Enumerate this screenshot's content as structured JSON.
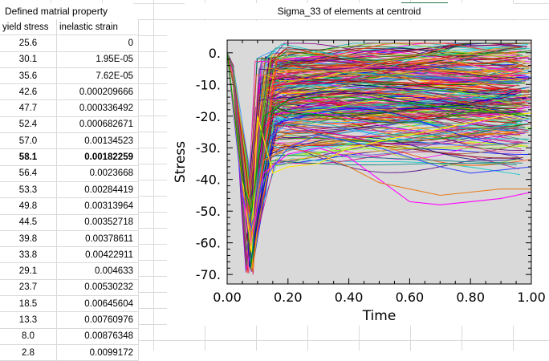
{
  "spreadsheet": {
    "table_title": "Defined matrial property",
    "columns": [
      "yield stress",
      "inelastic strain"
    ],
    "rows": [
      [
        "25.6",
        "0"
      ],
      [
        "30.1",
        "1.95E-05"
      ],
      [
        "35.6",
        "7.62E-05"
      ],
      [
        "42.6",
        "0.000209666"
      ],
      [
        "47.7",
        "0.000336492"
      ],
      [
        "52.4",
        "0.000682671"
      ],
      [
        "57.0",
        "0.00134523"
      ],
      [
        "58.1",
        "0.00182259"
      ],
      [
        "56.4",
        "0.0023668"
      ],
      [
        "53.3",
        "0.00284419"
      ],
      [
        "49.8",
        "0.00313964"
      ],
      [
        "44.5",
        "0.00352718"
      ],
      [
        "39.8",
        "0.00378611"
      ],
      [
        "33.8",
        "0.00422911"
      ],
      [
        "29.1",
        "0.004633"
      ],
      [
        "23.7",
        "0.00530232"
      ],
      [
        "18.5",
        "0.00645604"
      ],
      [
        "13.3",
        "0.00760976"
      ],
      [
        "8.0",
        "0.00876348"
      ],
      [
        "2.8",
        "0.0099172"
      ]
    ],
    "bold_row_index": 7
  },
  "chart_title": "Sigma_33 of elements at centroid",
  "chart_data": {
    "type": "line",
    "title": "",
    "xlabel": "Time",
    "ylabel": "Stress",
    "xlim": [
      0,
      1
    ],
    "ylim": [
      -73,
      4
    ],
    "xticks": [
      "0.00",
      "0.20",
      "0.40",
      "0.60",
      "0.80",
      "1.00"
    ],
    "yticks": [
      "0.",
      "-10.",
      "-20.",
      "-30.",
      "-40.",
      "-50.",
      "-60.",
      "-70."
    ],
    "grid": false,
    "legend": "none",
    "background": "#d9d9d9",
    "series_count_estimate": 300,
    "representative_series": [
      {
        "color": "#ff00ff",
        "x": [
          0,
          0.05,
          0.08,
          0.12,
          0.2,
          0.3,
          0.4,
          0.5,
          0.6,
          0.7,
          0.8,
          0.9,
          1.0
        ],
        "y": [
          0,
          -45,
          -60,
          -38,
          -32,
          -30,
          -33,
          -40,
          -47,
          -48,
          -47,
          -46,
          -44
        ]
      },
      {
        "color": "#ffeb00",
        "x": [
          0,
          0.05,
          0.08,
          0.1,
          0.15,
          0.2,
          0.3,
          0.4,
          0.5,
          0.6,
          0.7,
          0.8,
          0.9,
          1.0
        ],
        "y": [
          0,
          -40,
          -63,
          -20,
          -38,
          -36,
          -35,
          -30,
          -28,
          -26,
          -24,
          -22,
          -20,
          -19
        ]
      },
      {
        "color": "#3b4bff",
        "x": [
          0,
          0.05,
          0.08,
          0.12,
          0.2,
          0.3,
          0.4,
          0.5,
          0.6,
          0.7,
          0.8,
          0.9,
          1.0
        ],
        "y": [
          0,
          -45,
          -55,
          -40,
          -30,
          -26,
          -28,
          -30,
          -33,
          -36,
          -38,
          -37,
          -36
        ]
      },
      {
        "color": "#e67e22",
        "x": [
          0,
          0.05,
          0.08,
          0.12,
          0.2,
          0.3,
          0.4,
          0.5,
          0.6,
          0.7,
          0.8,
          0.9,
          1.0
        ],
        "y": [
          0,
          -42,
          -58,
          -34,
          -30,
          -32,
          -36,
          -41,
          -43,
          -45,
          -44,
          -43,
          -43
        ]
      },
      {
        "color": "#00a000",
        "x": [
          0,
          0.05,
          0.08,
          0.12,
          0.2,
          0.3,
          0.4,
          0.5,
          0.6,
          0.7,
          0.8,
          0.9,
          1.0
        ],
        "y": [
          0,
          -40,
          -50,
          -20,
          -15,
          -14,
          -14,
          -15,
          -16,
          -17,
          -18,
          -19,
          -20
        ]
      }
    ]
  }
}
